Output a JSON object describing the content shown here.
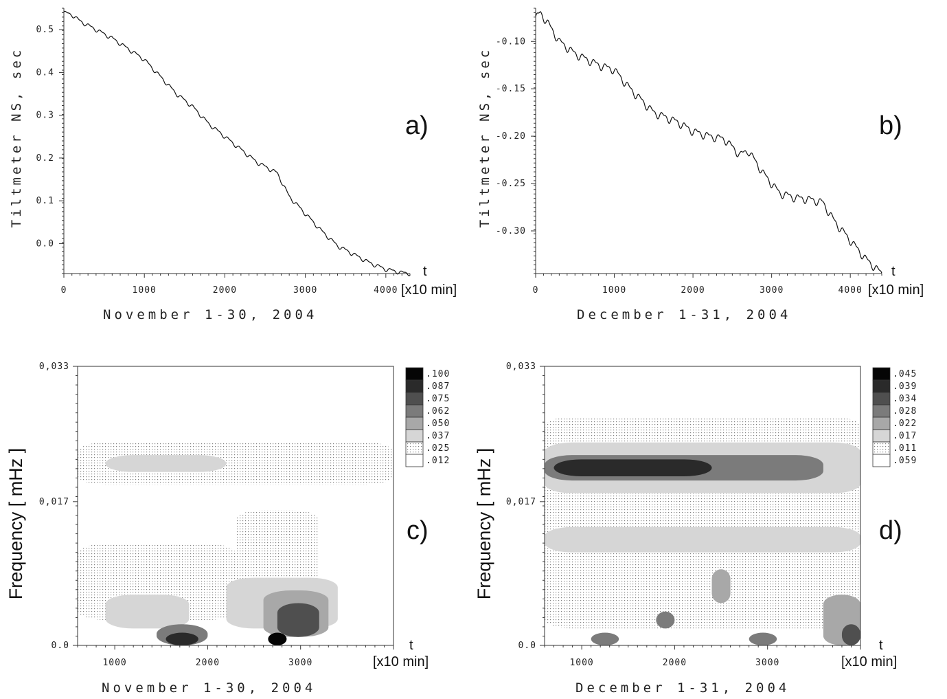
{
  "chart_data": [
    {
      "panel": "a)",
      "type": "line",
      "ylabel": "Tiltmeter NS, sec",
      "xlabel": "November 1-30, 2004",
      "x_axis_name": "t",
      "x_unit": "[x10 min]",
      "xlim": [
        0,
        4300
      ],
      "ylim": [
        -0.07,
        0.55
      ],
      "xticks": [
        "0",
        "1000",
        "2000",
        "3000",
        "4000"
      ],
      "yticks": [
        "0.0",
        "0.1",
        "0.2",
        "0.3",
        "0.4",
        "0.5"
      ],
      "x": [
        0,
        100,
        200,
        400,
        600,
        800,
        1000,
        1200,
        1400,
        1600,
        1800,
        2000,
        2200,
        2400,
        2600,
        2650,
        2800,
        3000,
        3200,
        3400,
        3600,
        3800,
        4000,
        4200,
        4300
      ],
      "y": [
        0.54,
        0.535,
        0.52,
        0.5,
        0.48,
        0.455,
        0.43,
        0.39,
        0.35,
        0.32,
        0.28,
        0.25,
        0.22,
        0.19,
        0.17,
        0.165,
        0.11,
        0.07,
        0.03,
        -0.005,
        -0.025,
        -0.045,
        -0.06,
        -0.068,
        -0.07
      ],
      "oscillation": "small periodic ripples"
    },
    {
      "panel": "b)",
      "type": "line",
      "ylabel": "Tiltmeter NS, sec",
      "xlabel": "December 1-31, 2004",
      "x_axis_name": "t",
      "x_unit": "[x10 min]",
      "xlim": [
        0,
        4400
      ],
      "ylim": [
        -0.345,
        -0.065
      ],
      "xticks": [
        "0",
        "1000",
        "2000",
        "3000",
        "4000"
      ],
      "yticks": [
        "-0.10",
        "-0.15",
        "-0.20",
        "-0.25",
        "-0.30"
      ],
      "x": [
        0,
        60,
        150,
        300,
        500,
        800,
        1000,
        1200,
        1500,
        1800,
        2000,
        2200,
        2400,
        2600,
        2700,
        2900,
        3100,
        3300,
        3500,
        3650,
        3800,
        4000,
        4200,
        4400
      ],
      "y": [
        -0.075,
        -0.07,
        -0.08,
        -0.1,
        -0.113,
        -0.125,
        -0.13,
        -0.15,
        -0.175,
        -0.185,
        -0.195,
        -0.2,
        -0.203,
        -0.22,
        -0.215,
        -0.24,
        -0.26,
        -0.265,
        -0.267,
        -0.27,
        -0.29,
        -0.31,
        -0.33,
        -0.345
      ],
      "oscillation": "pronounced periodic ripples"
    },
    {
      "panel": "c)",
      "type": "heatmap",
      "ylabel": "Frequency [ mHz ]",
      "xlabel": "November 1-30, 2004",
      "x_axis_name": "t",
      "x_unit": "[x10 min]",
      "xlim": [
        600,
        4000
      ],
      "ylim": [
        0,
        0.033
      ],
      "xticks": [
        "1000",
        "2000",
        "3000"
      ],
      "yticks": [
        "0.0",
        "0,017",
        "0,033"
      ],
      "legend_levels": [
        ".100",
        ".087",
        ".075",
        ".062",
        ".050",
        ".037",
        ".025",
        ".012"
      ],
      "features": [
        {
          "level": 1,
          "x": [
            600,
            4000
          ],
          "y": [
            0.019,
            0.024
          ]
        },
        {
          "level": 2,
          "x": [
            900,
            2200
          ],
          "y": [
            0.0205,
            0.0225
          ]
        },
        {
          "level": 1,
          "x": [
            600,
            2300
          ],
          "y": [
            0.003,
            0.012
          ]
        },
        {
          "level": 1,
          "x": [
            2300,
            3200
          ],
          "y": [
            0.005,
            0.016
          ]
        },
        {
          "level": 2,
          "x": [
            900,
            1800
          ],
          "y": [
            0.002,
            0.006
          ]
        },
        {
          "level": 2,
          "x": [
            2200,
            3400
          ],
          "y": [
            0.002,
            0.008
          ]
        },
        {
          "level": 3,
          "x": [
            2600,
            3300
          ],
          "y": [
            0.001,
            0.0065
          ]
        },
        {
          "level": 5,
          "x": [
            2750,
            3200
          ],
          "y": [
            0.001,
            0.005
          ]
        },
        {
          "level": 4,
          "x": [
            1450,
            2000
          ],
          "y": [
            0.0,
            0.0025
          ]
        },
        {
          "level": 6,
          "x": [
            1550,
            1900
          ],
          "y": [
            0.0,
            0.0015
          ]
        },
        {
          "level": 7,
          "x": [
            2650,
            2850
          ],
          "y": [
            0.0,
            0.0015
          ]
        }
      ]
    },
    {
      "panel": "d)",
      "type": "heatmap",
      "ylabel": "Frequency [ mHz ]",
      "xlabel": "December 1-31, 2004",
      "x_axis_name": "t",
      "x_unit": "[x10 min]",
      "xlim": [
        600,
        4000
      ],
      "ylim": [
        0,
        0.033
      ],
      "xticks": [
        "1000",
        "2000",
        "3000"
      ],
      "yticks": [
        "0.0",
        "0,017",
        "0,033"
      ],
      "legend_levels": [
        ".045",
        ".039",
        ".034",
        ".028",
        ".022",
        ".017",
        ".011",
        ".059"
      ],
      "features": [
        {
          "level": 1,
          "x": [
            600,
            4000
          ],
          "y": [
            0.002,
            0.027
          ]
        },
        {
          "level": 2,
          "x": [
            600,
            4000
          ],
          "y": [
            0.018,
            0.024
          ]
        },
        {
          "level": 4,
          "x": [
            600,
            3600
          ],
          "y": [
            0.0195,
            0.0225
          ]
        },
        {
          "level": 6,
          "x": [
            700,
            2400
          ],
          "y": [
            0.02,
            0.022
          ]
        },
        {
          "level": 2,
          "x": [
            600,
            4000
          ],
          "y": [
            0.011,
            0.014
          ]
        },
        {
          "level": 3,
          "x": [
            2400,
            2600
          ],
          "y": [
            0.005,
            0.009
          ]
        },
        {
          "level": 4,
          "x": [
            1800,
            2000
          ],
          "y": [
            0.002,
            0.004
          ]
        },
        {
          "level": 4,
          "x": [
            1100,
            1400
          ],
          "y": [
            0.0,
            0.0015
          ]
        },
        {
          "level": 4,
          "x": [
            2800,
            3100
          ],
          "y": [
            0.0,
            0.0015
          ]
        },
        {
          "level": 3,
          "x": [
            3600,
            4000
          ],
          "y": [
            0.0,
            0.006
          ]
        },
        {
          "level": 5,
          "x": [
            3800,
            4000
          ],
          "y": [
            0.0,
            0.0025
          ]
        }
      ]
    }
  ]
}
